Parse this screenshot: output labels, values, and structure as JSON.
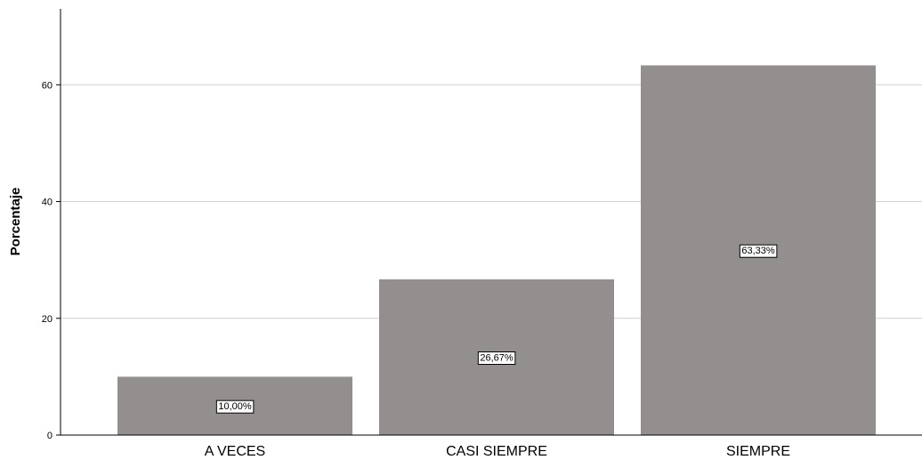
{
  "chart_data": {
    "type": "bar",
    "title": "",
    "xlabel": "",
    "ylabel": "Porcentaje",
    "categories": [
      "A VECES",
      "CASI SIEMPRE",
      "SIEMPRE"
    ],
    "values": [
      10.0,
      26.67,
      63.33
    ],
    "data_labels": [
      "10,00%",
      "26,67%",
      "63,33%"
    ],
    "yticks": [
      0,
      20,
      40,
      60
    ],
    "ylim": [
      0,
      73
    ],
    "grid": true,
    "bar_color": "#948f8f",
    "grid_color": "#d0d0d0",
    "axis_color": "#000000"
  }
}
